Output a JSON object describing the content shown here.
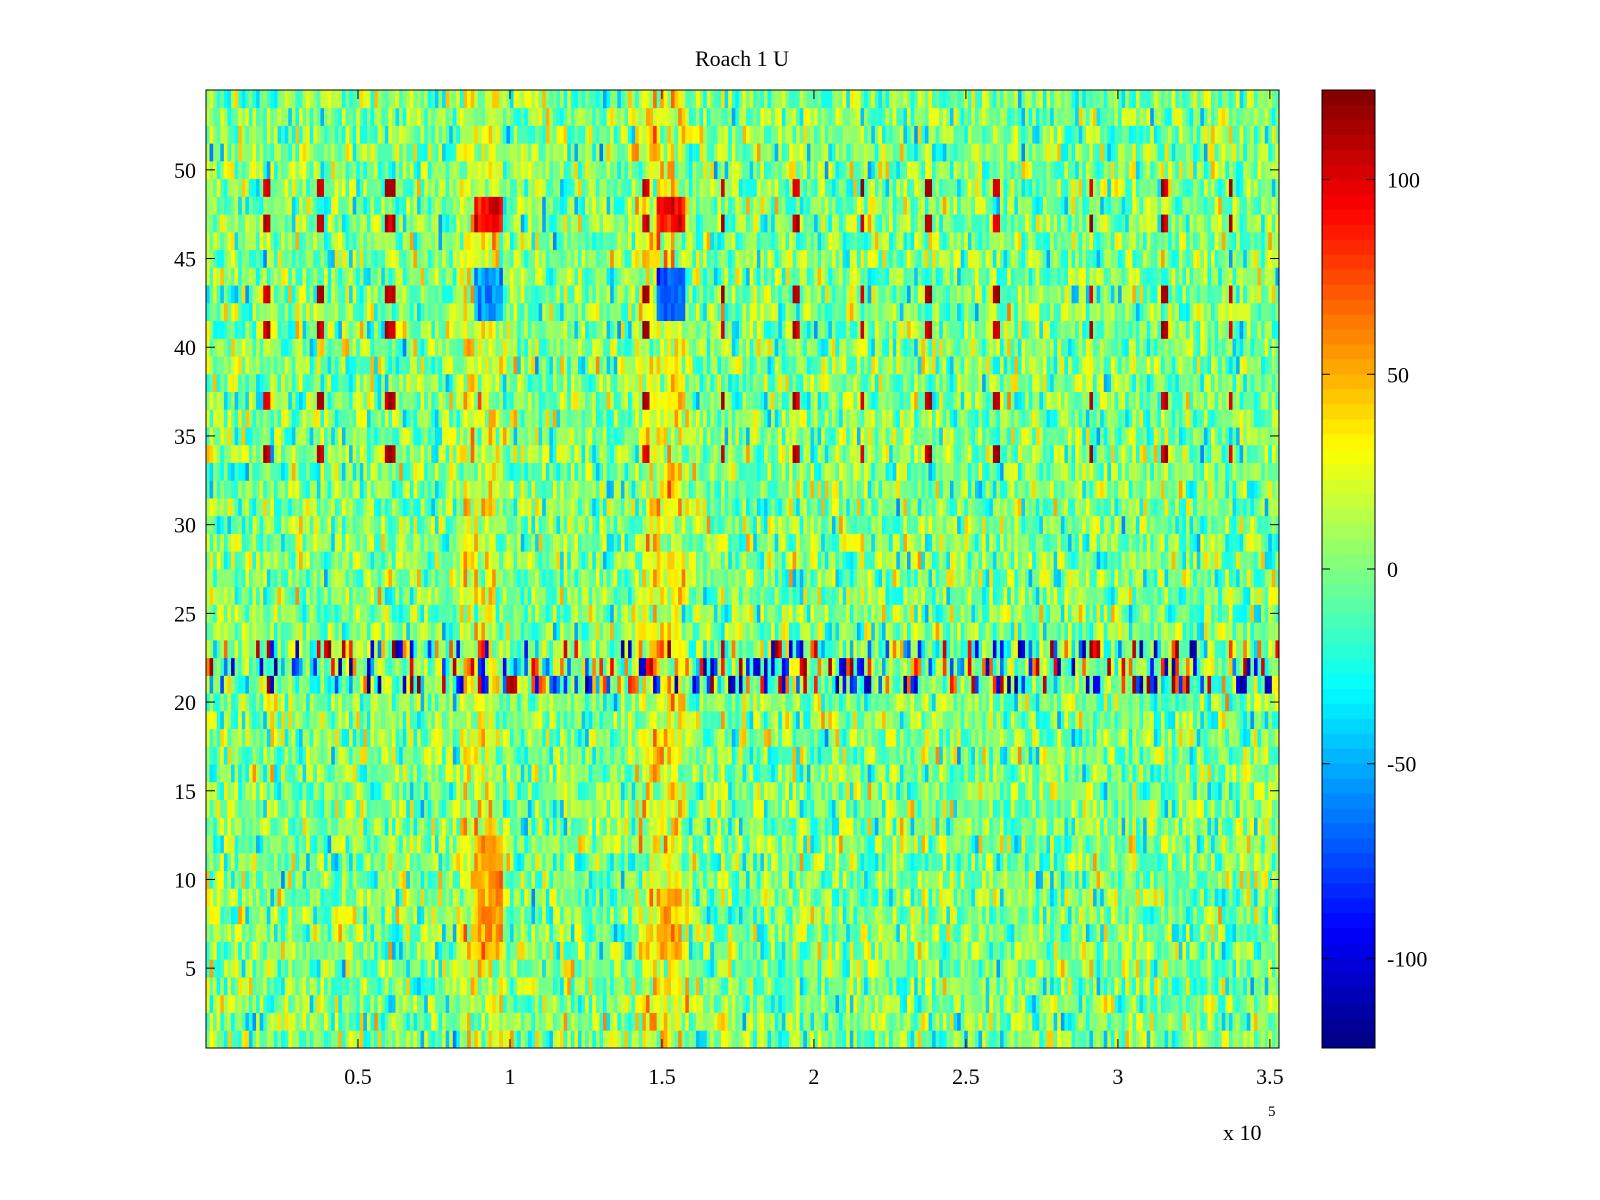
{
  "chart_data": {
    "type": "heatmap",
    "title": "Roach 1 U",
    "xlabel": "",
    "ylabel": "",
    "x_multiplier": "x 10",
    "x_multiplier_exponent": "5",
    "xlim": [
      0.0,
      3.53
    ],
    "ylim": [
      0.5,
      54.5
    ],
    "x_ticks": [
      {
        "value": 0.5,
        "label": "0.5"
      },
      {
        "value": 1.0,
        "label": "1"
      },
      {
        "value": 1.5,
        "label": "1.5"
      },
      {
        "value": 2.0,
        "label": "2"
      },
      {
        "value": 2.5,
        "label": "2.5"
      },
      {
        "value": 3.0,
        "label": "3"
      },
      {
        "value": 3.5,
        "label": "3.5"
      }
    ],
    "y_ticks": [
      {
        "value": 5,
        "label": "5"
      },
      {
        "value": 10,
        "label": "10"
      },
      {
        "value": 15,
        "label": "15"
      },
      {
        "value": 20,
        "label": "20"
      },
      {
        "value": 25,
        "label": "25"
      },
      {
        "value": 30,
        "label": "30"
      },
      {
        "value": 35,
        "label": "35"
      },
      {
        "value": 40,
        "label": "40"
      },
      {
        "value": 45,
        "label": "45"
      },
      {
        "value": 50,
        "label": "50"
      }
    ],
    "rows": 54,
    "colorbar": {
      "colormap": "jet",
      "clim": [
        -123,
        123
      ],
      "ticks": [
        {
          "value": 100,
          "label": "100"
        },
        {
          "value": 50,
          "label": "50"
        },
        {
          "value": 0,
          "label": "0"
        },
        {
          "value": -50,
          "label": "-50"
        },
        {
          "value": -100,
          "label": "-100"
        }
      ]
    },
    "features": {
      "hot_columns_x": [
        0.87,
        0.93,
        1.45,
        1.5,
        1.55
      ],
      "spike_columns_x": [
        0.2,
        0.38,
        0.6,
        0.62,
        1.45,
        1.7,
        1.94,
        2.16,
        2.38,
        2.6,
        2.91,
        3.15,
        3.37
      ],
      "hot_spots": [
        {
          "x": [
            0.88,
            0.98
          ],
          "rows": [
            47,
            48
          ],
          "value": 95
        },
        {
          "x": [
            1.48,
            1.58
          ],
          "rows": [
            47,
            48
          ],
          "value": 90
        },
        {
          "x": [
            0.88,
            0.98
          ],
          "rows": [
            6,
            12
          ],
          "value": 55
        },
        {
          "x": [
            1.48,
            1.56
          ],
          "rows": [
            6,
            9
          ],
          "value": 50
        }
      ],
      "cold_spots": [
        {
          "x": [
            0.88,
            0.98
          ],
          "rows": [
            42,
            44
          ],
          "value": -55
        },
        {
          "x": [
            1.48,
            1.58
          ],
          "rows": [
            42,
            44
          ],
          "value": -65
        }
      ],
      "noisy_band_rows": [
        21,
        23
      ],
      "spiky_rows": [
        34,
        37,
        41,
        43,
        47,
        49
      ]
    }
  }
}
